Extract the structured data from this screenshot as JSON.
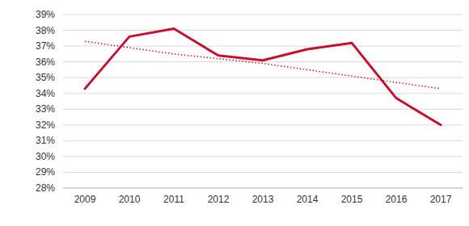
{
  "chart_data": {
    "type": "line",
    "categories": [
      "2009",
      "2010",
      "2011",
      "2012",
      "2013",
      "2014",
      "2015",
      "2016",
      "2017"
    ],
    "series": [
      {
        "color": "#c8102e",
        "line_style": "solid",
        "values": [
          34.3,
          37.6,
          38.1,
          36.4,
          36.1,
          36.8,
          37.2,
          33.7,
          32.0
        ]
      },
      {
        "color": "#c8102e",
        "line_style": "dotted",
        "values": [
          37.3,
          36.9,
          36.5,
          36.2,
          35.9,
          35.5,
          35.1,
          34.7,
          34.3
        ]
      }
    ],
    "ylim": [
      28,
      39
    ],
    "yticks": [
      {
        "value": 28,
        "label": "28%"
      },
      {
        "value": 29,
        "label": "29%"
      },
      {
        "value": 30,
        "label": "30%"
      },
      {
        "value": 31,
        "label": "31%"
      },
      {
        "value": 32,
        "label": "32%"
      },
      {
        "value": 33,
        "label": "33%"
      },
      {
        "value": 34,
        "label": "34%"
      },
      {
        "value": 35,
        "label": "35%"
      },
      {
        "value": 36,
        "label": "36%"
      },
      {
        "value": 37,
        "label": "37%"
      },
      {
        "value": 38,
        "label": "38%"
      },
      {
        "value": 39,
        "label": "39%"
      }
    ],
    "grid": true
  }
}
